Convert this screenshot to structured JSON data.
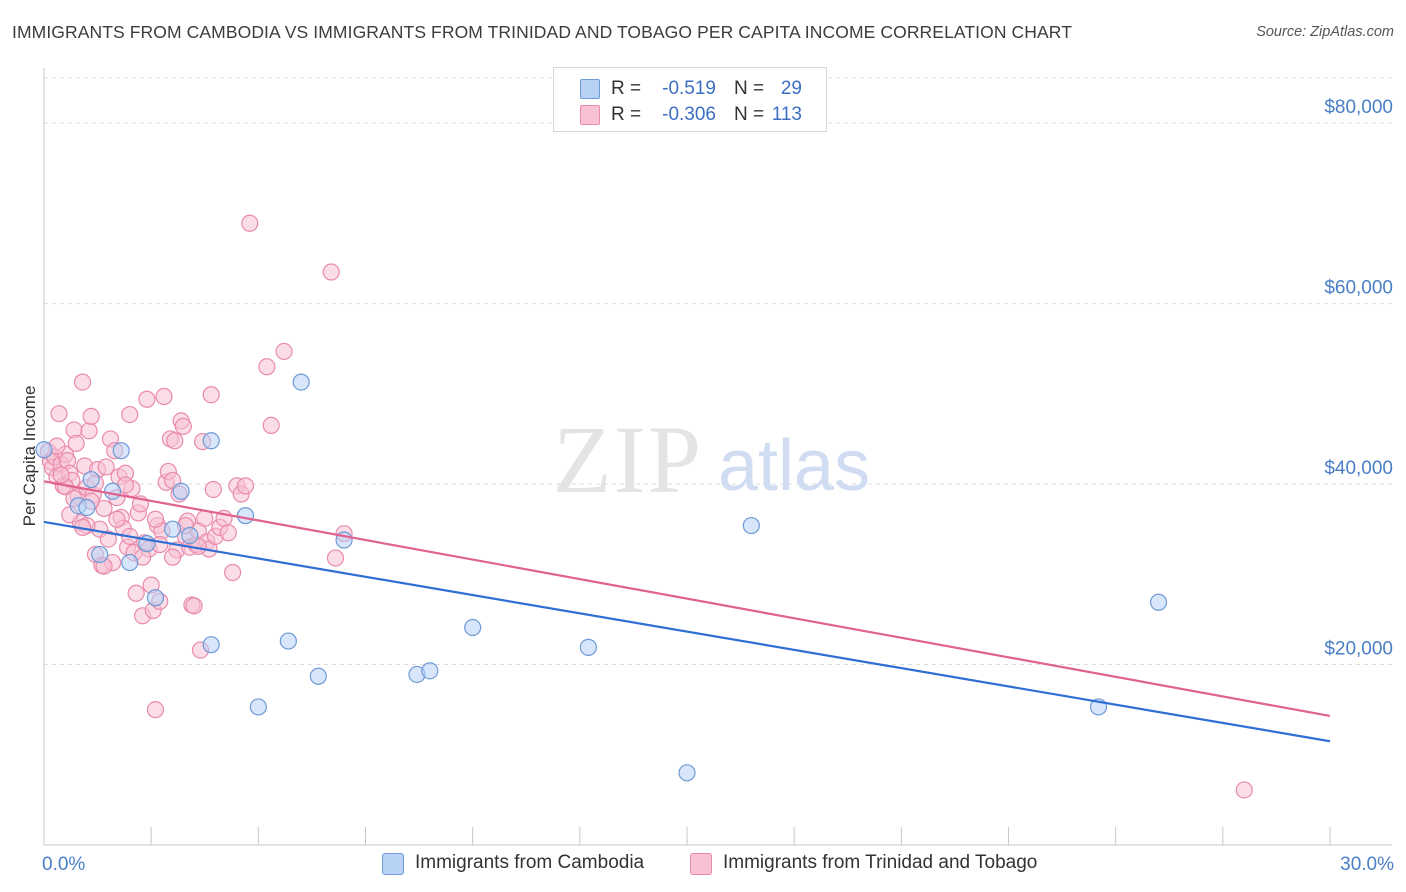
{
  "title": "IMMIGRANTS FROM CAMBODIA VS IMMIGRANTS FROM TRINIDAD AND TOBAGO PER CAPITA INCOME CORRELATION CHART",
  "source": "Source: ZipAtlas.com",
  "watermark": {
    "zip": "ZIP",
    "atlas": "atlas"
  },
  "colors": {
    "cambodia_fill": "#b7d2f5",
    "cambodia_stroke": "#6e9ad6",
    "cambodia_line": "#2f6ed4",
    "trinidad_fill": "#f8c1d4",
    "trinidad_stroke": "#e98aac",
    "trinidad_line": "#e0628f",
    "tick_label": "#4a7fc6",
    "grid": "#dddddd"
  },
  "legend": {
    "rows": [
      {
        "r_label": "R =",
        "r_value": "-0.519",
        "n_label": "N =",
        "n_value": "29"
      },
      {
        "r_label": "R =",
        "r_value": "-0.306",
        "n_label": "N =",
        "n_value": "113"
      }
    ]
  },
  "chart_data": {
    "type": "scatter",
    "title": "IMMIGRANTS FROM CAMBODIA VS IMMIGRANTS FROM TRINIDAD AND TOBAGO PER CAPITA INCOME CORRELATION CHART",
    "xlabel": "",
    "ylabel": "Per Capita Income",
    "xlim": [
      0,
      30
    ],
    "ylim": [
      0,
      85000
    ],
    "x_tick_labels": [
      "0.0%",
      "30.0%"
    ],
    "y_ticks": [
      20000,
      40000,
      60000,
      80000
    ],
    "y_tick_labels": [
      "$20,000",
      "$40,000",
      "$60,000",
      "$80,000"
    ],
    "grid": true,
    "legend_position": "top-center",
    "series": [
      {
        "name": "Immigrants from Cambodia",
        "points": [
          [
            0.0,
            43800
          ],
          [
            0.8,
            37600
          ],
          [
            1.1,
            40500
          ],
          [
            1.3,
            32200
          ],
          [
            1.6,
            39200
          ],
          [
            1.8,
            43700
          ],
          [
            2.0,
            31300
          ],
          [
            2.4,
            33400
          ],
          [
            2.6,
            27400
          ],
          [
            3.0,
            35000
          ],
          [
            3.2,
            39200
          ],
          [
            3.4,
            34300
          ],
          [
            3.9,
            44800
          ],
          [
            3.9,
            22200
          ],
          [
            4.7,
            36500
          ],
          [
            5.0,
            15300
          ],
          [
            5.7,
            22600
          ],
          [
            6.0,
            51300
          ],
          [
            6.4,
            18700
          ],
          [
            7.0,
            33800
          ],
          [
            8.7,
            18900
          ],
          [
            9.0,
            19300
          ],
          [
            10.0,
            24100
          ],
          [
            12.7,
            21900
          ],
          [
            15.0,
            8000
          ],
          [
            16.5,
            35400
          ],
          [
            24.6,
            15300
          ],
          [
            26.0,
            26900
          ],
          [
            1.0,
            37400
          ]
        ],
        "trend": {
          "x": [
            0,
            30
          ],
          "y": [
            35800,
            11500
          ]
        }
      },
      {
        "name": "Immigrants from Trinidad and Tobago",
        "points": [
          [
            0.1,
            43600
          ],
          [
            0.15,
            42500
          ],
          [
            0.2,
            41800
          ],
          [
            0.25,
            43000
          ],
          [
            0.3,
            40800
          ],
          [
            0.35,
            47800
          ],
          [
            0.4,
            42200
          ],
          [
            0.45,
            39800
          ],
          [
            0.5,
            43300
          ],
          [
            0.55,
            42600
          ],
          [
            0.6,
            41200
          ],
          [
            0.65,
            40400
          ],
          [
            0.7,
            46000
          ],
          [
            0.75,
            44500
          ],
          [
            0.8,
            38600
          ],
          [
            0.85,
            35700
          ],
          [
            0.9,
            51300
          ],
          [
            0.95,
            42000
          ],
          [
            1.0,
            39600
          ],
          [
            1.05,
            45900
          ],
          [
            1.1,
            47500
          ],
          [
            1.15,
            38800
          ],
          [
            1.2,
            32200
          ],
          [
            1.25,
            41600
          ],
          [
            1.3,
            35000
          ],
          [
            1.35,
            31000
          ],
          [
            1.4,
            37300
          ],
          [
            1.45,
            41900
          ],
          [
            1.5,
            33900
          ],
          [
            1.55,
            45000
          ],
          [
            1.6,
            31300
          ],
          [
            1.65,
            43700
          ],
          [
            1.7,
            38500
          ],
          [
            1.75,
            40800
          ],
          [
            1.8,
            36300
          ],
          [
            1.85,
            35100
          ],
          [
            1.9,
            41200
          ],
          [
            1.95,
            33000
          ],
          [
            2.0,
            47700
          ],
          [
            2.05,
            39500
          ],
          [
            2.1,
            32400
          ],
          [
            2.15,
            27900
          ],
          [
            2.2,
            36800
          ],
          [
            2.25,
            37800
          ],
          [
            2.3,
            25400
          ],
          [
            2.35,
            33500
          ],
          [
            2.4,
            49400
          ],
          [
            2.45,
            32800
          ],
          [
            2.5,
            28800
          ],
          [
            2.55,
            26000
          ],
          [
            2.6,
            15000
          ],
          [
            2.65,
            35400
          ],
          [
            2.7,
            27000
          ],
          [
            2.75,
            34800
          ],
          [
            2.8,
            49700
          ],
          [
            2.85,
            40200
          ],
          [
            2.9,
            41400
          ],
          [
            2.95,
            45000
          ],
          [
            3.0,
            40400
          ],
          [
            3.05,
            44800
          ],
          [
            3.1,
            32700
          ],
          [
            3.15,
            38900
          ],
          [
            3.2,
            47000
          ],
          [
            3.25,
            46400
          ],
          [
            3.3,
            34200
          ],
          [
            3.35,
            35900
          ],
          [
            3.4,
            33000
          ],
          [
            3.45,
            26600
          ],
          [
            3.5,
            26500
          ],
          [
            3.55,
            33300
          ],
          [
            3.6,
            34800
          ],
          [
            3.65,
            21600
          ],
          [
            3.7,
            44700
          ],
          [
            3.75,
            36200
          ],
          [
            3.8,
            33600
          ],
          [
            3.85,
            32800
          ],
          [
            3.9,
            49900
          ],
          [
            3.95,
            39400
          ],
          [
            4.0,
            34200
          ],
          [
            4.1,
            35200
          ],
          [
            4.2,
            36200
          ],
          [
            4.3,
            34600
          ],
          [
            4.4,
            30200
          ],
          [
            4.5,
            39800
          ],
          [
            4.6,
            38900
          ],
          [
            4.7,
            39800
          ],
          [
            4.8,
            68900
          ],
          [
            5.2,
            53000
          ],
          [
            5.3,
            46500
          ],
          [
            5.6,
            54700
          ],
          [
            6.7,
            63500
          ],
          [
            6.8,
            31800
          ],
          [
            7.0,
            34500
          ],
          [
            28.0,
            6100
          ],
          [
            1.0,
            35400
          ],
          [
            1.1,
            38100
          ],
          [
            0.5,
            39700
          ],
          [
            0.6,
            36600
          ],
          [
            0.9,
            35200
          ],
          [
            1.4,
            30900
          ],
          [
            1.7,
            36100
          ],
          [
            2.0,
            34200
          ],
          [
            2.3,
            31900
          ],
          [
            2.7,
            33300
          ],
          [
            3.0,
            31900
          ],
          [
            0.3,
            44200
          ],
          [
            0.4,
            41000
          ],
          [
            0.7,
            38400
          ],
          [
            1.2,
            40100
          ],
          [
            1.9,
            39900
          ],
          [
            2.6,
            36100
          ],
          [
            3.3,
            35400
          ],
          [
            3.6,
            33100
          ]
        ],
        "trend": {
          "x": [
            0,
            30
          ],
          "y": [
            40300,
            14300
          ]
        }
      }
    ]
  }
}
